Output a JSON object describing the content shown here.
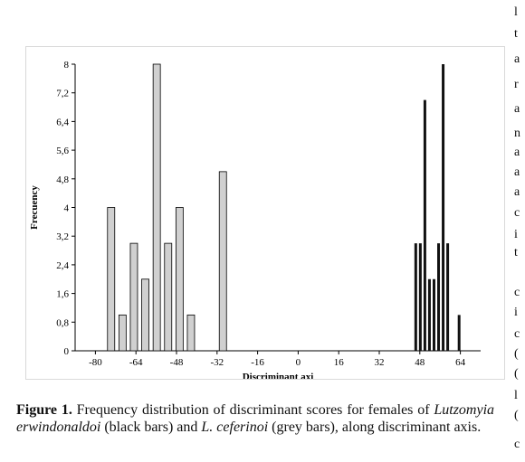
{
  "chart_data": {
    "type": "bar",
    "title": "",
    "xlabel": "Discriminant axi",
    "ylabel": "Frecuency",
    "xlim": [
      -88,
      72
    ],
    "ylim": [
      0,
      8
    ],
    "xticks": [
      -80,
      -64,
      -48,
      -32,
      -16,
      0,
      16,
      32,
      48,
      64
    ],
    "yticks": [
      0,
      0.8,
      1.6,
      2.4,
      3.2,
      4,
      4.8,
      5.6,
      6.4,
      7.2,
      8
    ],
    "ytick_labels": [
      "0",
      "0,8",
      "1,6",
      "2,4",
      "3,2",
      "4",
      "4,8",
      "5,6",
      "6,4",
      "7,2",
      "8"
    ],
    "grid": false,
    "legend": "none",
    "series": [
      {
        "name": "L. ceferinoi",
        "color": "#d0d0d0",
        "x": [
          -73.8,
          -69.3,
          -64.8,
          -60.3,
          -55.8,
          -51.3,
          -46.8,
          -42.3,
          -29.7
        ],
        "y": [
          4,
          1,
          3,
          2,
          8,
          3,
          4,
          1,
          5
        ]
      },
      {
        "name": "Lutzomyia erwindonaldoi",
        "color": "#111111",
        "x": [
          46.4,
          48.2,
          50.0,
          51.8,
          53.6,
          55.4,
          57.2,
          59.0,
          63.5
        ],
        "y": [
          3,
          3,
          7,
          2,
          2,
          3,
          8,
          3,
          1
        ]
      }
    ]
  },
  "caption": {
    "label": "Figure 1.",
    "text_1": " Frequency distribution of discriminant scores for females of ",
    "species_1": "Lutzomyia erwindonaldoi",
    "text_2": " (black bars) and ",
    "species_2": "L. ceferinoi",
    "text_3": " (grey bars), along discriminant axis."
  }
}
